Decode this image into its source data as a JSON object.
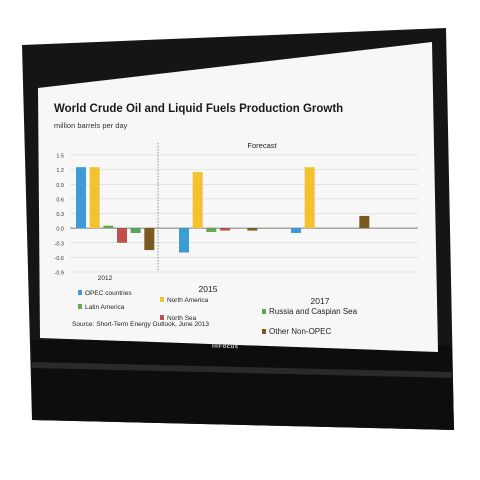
{
  "device": {
    "brand": "InFocus"
  },
  "chart_data": {
    "type": "bar",
    "title": "World Crude Oil and Liquid Fuels Production Growth",
    "ylabel": "million barrels per day",
    "ylim": [
      -0.9,
      1.5
    ],
    "yticks": [
      "1.5",
      "1.2",
      "0.9",
      "0.6",
      "0.3",
      "0.0",
      "-0.3",
      "-0.6",
      "-0.9"
    ],
    "yticks_values": [
      1.5,
      1.2,
      0.9,
      0.6,
      0.3,
      0.0,
      -0.3,
      -0.6,
      -0.9
    ],
    "categories": [
      "2012",
      "2015",
      "2017"
    ],
    "forecast_label": "Forecast",
    "source": "Source: Short-Term Energy Outlook, June 2013",
    "grid": true,
    "legend_position": "bottom",
    "series": [
      {
        "name": "OPEC countries",
        "color": "#3d9bd6",
        "values": [
          1.25,
          -0.5,
          -0.1
        ]
      },
      {
        "name": "North America",
        "color": "#f2c230",
        "values": [
          1.25,
          1.15,
          1.25
        ]
      },
      {
        "name": "Latin America",
        "color": "#6aa84f",
        "values": [
          0.05,
          -0.08,
          0.0
        ]
      },
      {
        "name": "North Sea",
        "color": "#c0504d",
        "values": [
          -0.3,
          -0.05,
          0.0
        ]
      },
      {
        "name": "Russia and Caspian Sea",
        "color": "#5aa55a",
        "values": [
          -0.1,
          0.0,
          0.0
        ]
      },
      {
        "name": "Other Non-OPEC",
        "color": "#7a5a1e",
        "values": [
          -0.45,
          -0.05,
          0.25
        ]
      }
    ],
    "series_color_other_latam": "#c87d3a"
  }
}
